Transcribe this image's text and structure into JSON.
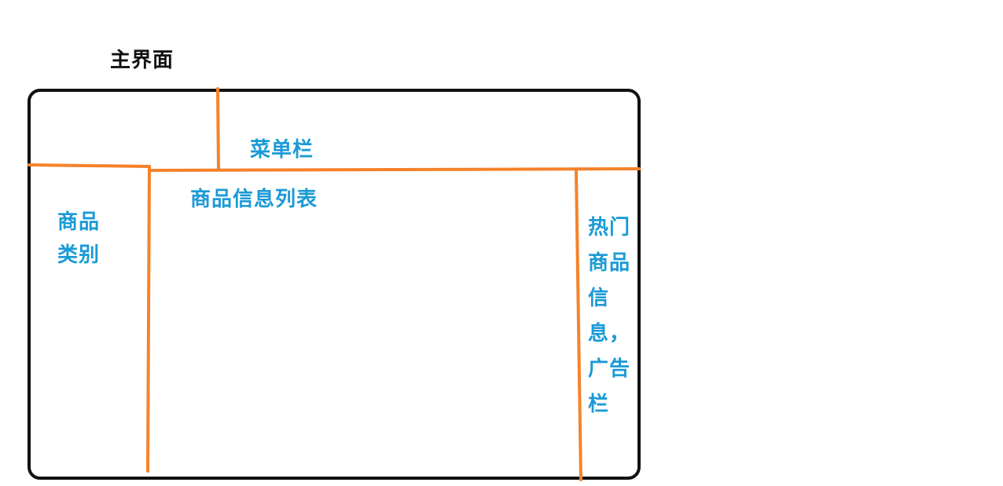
{
  "title": "主界面",
  "regions": {
    "menu_bar": "菜单栏",
    "product_list": "商品信息列表",
    "category": "商品类别",
    "hot_ads": "热门商品信息，广告栏"
  },
  "colors": {
    "outline": "#111111",
    "divider": "#f5822a",
    "label": "#1a9ad6"
  }
}
